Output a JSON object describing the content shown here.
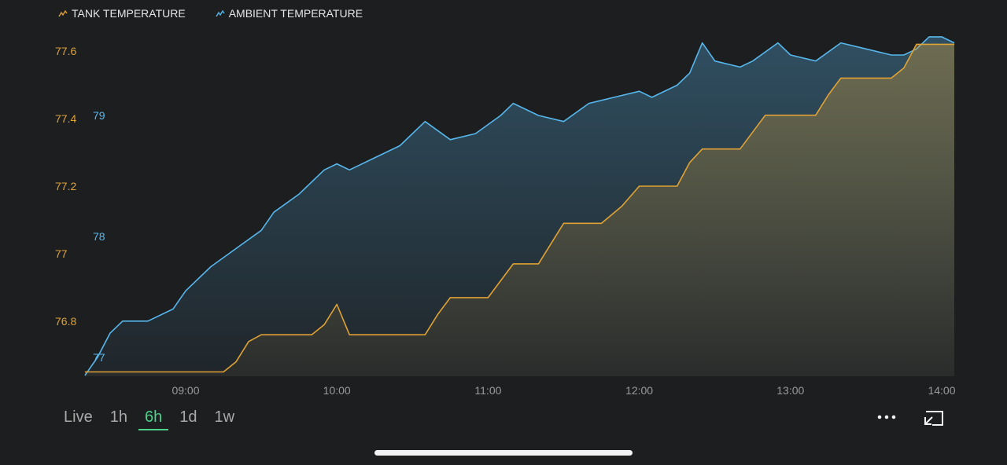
{
  "legend": [
    {
      "label": "TANK TEMPERATURE",
      "color": "#e0a234",
      "icon": "line-chart-icon"
    },
    {
      "label": "AMBIENT TEMPERATURE",
      "color": "#57b7ec",
      "icon": "line-chart-icon"
    }
  ],
  "chart_data": {
    "type": "area",
    "x_ticks": [
      "09:00",
      "10:00",
      "11:00",
      "12:00",
      "13:00",
      "14:00"
    ],
    "y_left_ticks": [
      "77.6",
      "77.4",
      "77.2",
      "77",
      "76.8"
    ],
    "y_right_ticks": [
      "79",
      "78",
      "77"
    ],
    "series": [
      {
        "name": "TANK TEMPERATURE",
        "axis": "left",
        "color": "#e0a234",
        "points": [
          [
            "08:20",
            76.65
          ],
          [
            "09:00",
            76.65
          ],
          [
            "09:15",
            76.65
          ],
          [
            "09:20",
            76.68
          ],
          [
            "09:25",
            76.74
          ],
          [
            "09:30",
            76.76
          ],
          [
            "09:50",
            76.76
          ],
          [
            "09:55",
            76.79
          ],
          [
            "10:00",
            76.85
          ],
          [
            "10:05",
            76.76
          ],
          [
            "10:20",
            76.76
          ],
          [
            "10:35",
            76.76
          ],
          [
            "10:40",
            76.82
          ],
          [
            "10:45",
            76.87
          ],
          [
            "11:00",
            76.87
          ],
          [
            "11:05",
            76.92
          ],
          [
            "11:10",
            76.97
          ],
          [
            "11:20",
            76.97
          ],
          [
            "11:25",
            77.03
          ],
          [
            "11:30",
            77.09
          ],
          [
            "11:45",
            77.09
          ],
          [
            "11:53",
            77.14
          ],
          [
            "12:00",
            77.2
          ],
          [
            "12:15",
            77.2
          ],
          [
            "12:20",
            77.27
          ],
          [
            "12:25",
            77.31
          ],
          [
            "12:40",
            77.31
          ],
          [
            "12:45",
            77.36
          ],
          [
            "12:50",
            77.41
          ],
          [
            "13:10",
            77.41
          ],
          [
            "13:15",
            77.47
          ],
          [
            "13:20",
            77.52
          ],
          [
            "13:40",
            77.52
          ],
          [
            "13:45",
            77.55
          ],
          [
            "13:50",
            77.62
          ],
          [
            "14:05",
            77.62
          ]
        ]
      },
      {
        "name": "AMBIENT TEMPERATURE",
        "axis": "right",
        "color": "#57b7ec",
        "points": [
          [
            "08:20",
            76.85
          ],
          [
            "08:25",
            77.0
          ],
          [
            "08:30",
            77.2
          ],
          [
            "08:35",
            77.3
          ],
          [
            "08:45",
            77.3
          ],
          [
            "08:55",
            77.4
          ],
          [
            "09:00",
            77.55
          ],
          [
            "09:10",
            77.75
          ],
          [
            "09:20",
            77.9
          ],
          [
            "09:30",
            78.05
          ],
          [
            "09:35",
            78.2
          ],
          [
            "09:45",
            78.35
          ],
          [
            "09:55",
            78.55
          ],
          [
            "10:00",
            78.6
          ],
          [
            "10:05",
            78.55
          ],
          [
            "10:15",
            78.65
          ],
          [
            "10:25",
            78.75
          ],
          [
            "10:35",
            78.95
          ],
          [
            "10:45",
            78.8
          ],
          [
            "10:55",
            78.85
          ],
          [
            "11:05",
            79.0
          ],
          [
            "11:10",
            79.1
          ],
          [
            "11:20",
            79.0
          ],
          [
            "11:30",
            78.95
          ],
          [
            "11:40",
            79.1
          ],
          [
            "11:50",
            79.15
          ],
          [
            "12:00",
            79.2
          ],
          [
            "12:05",
            79.15
          ],
          [
            "12:15",
            79.25
          ],
          [
            "12:20",
            79.35
          ],
          [
            "12:25",
            79.6
          ],
          [
            "12:30",
            79.45
          ],
          [
            "12:40",
            79.4
          ],
          [
            "12:45",
            79.45
          ],
          [
            "12:55",
            79.6
          ],
          [
            "13:00",
            79.5
          ],
          [
            "13:10",
            79.45
          ],
          [
            "13:20",
            79.6
          ],
          [
            "13:30",
            79.55
          ],
          [
            "13:40",
            79.5
          ],
          [
            "13:45",
            79.5
          ],
          [
            "13:50",
            79.55
          ],
          [
            "13:55",
            79.65
          ],
          [
            "14:00",
            79.65
          ],
          [
            "14:05",
            79.6
          ]
        ]
      }
    ]
  },
  "controls": {
    "ranges": [
      "Live",
      "1h",
      "6h",
      "1d",
      "1w"
    ],
    "active_range": "6h",
    "more_icon": "more-icon",
    "expand_icon": "fullscreen-exit-icon"
  },
  "colors": {
    "background": "#1d1e20",
    "active_accent": "#4fd08b",
    "tank": "#e0a234",
    "ambient": "#57b7ec"
  }
}
